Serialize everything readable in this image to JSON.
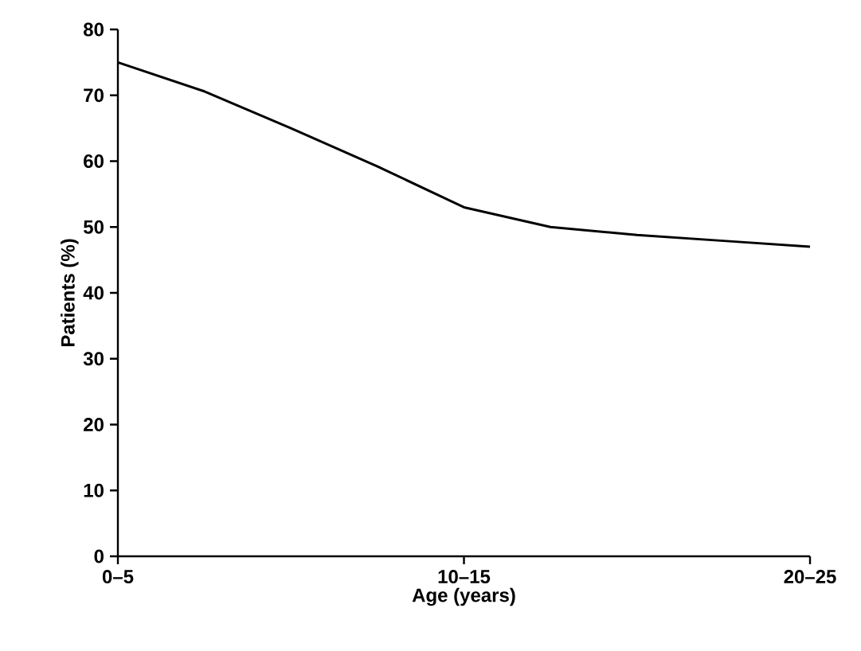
{
  "chart_data": {
    "type": "line",
    "xlabel": "Age (years)",
    "ylabel": "Patients (%)",
    "categories": [
      "0–5",
      null,
      null,
      null,
      "10–15",
      null,
      null,
      null,
      "20–25"
    ],
    "values": [
      75,
      70.6,
      65.0,
      59.2,
      53.0,
      50.0,
      48.8,
      47.9,
      47.0
    ],
    "color": "#000000",
    "ylim": [
      0,
      80
    ],
    "yticks": [
      0,
      10,
      20,
      30,
      40,
      50,
      60,
      70,
      80
    ],
    "grid": false,
    "marker": "none",
    "line_style": "solid"
  }
}
